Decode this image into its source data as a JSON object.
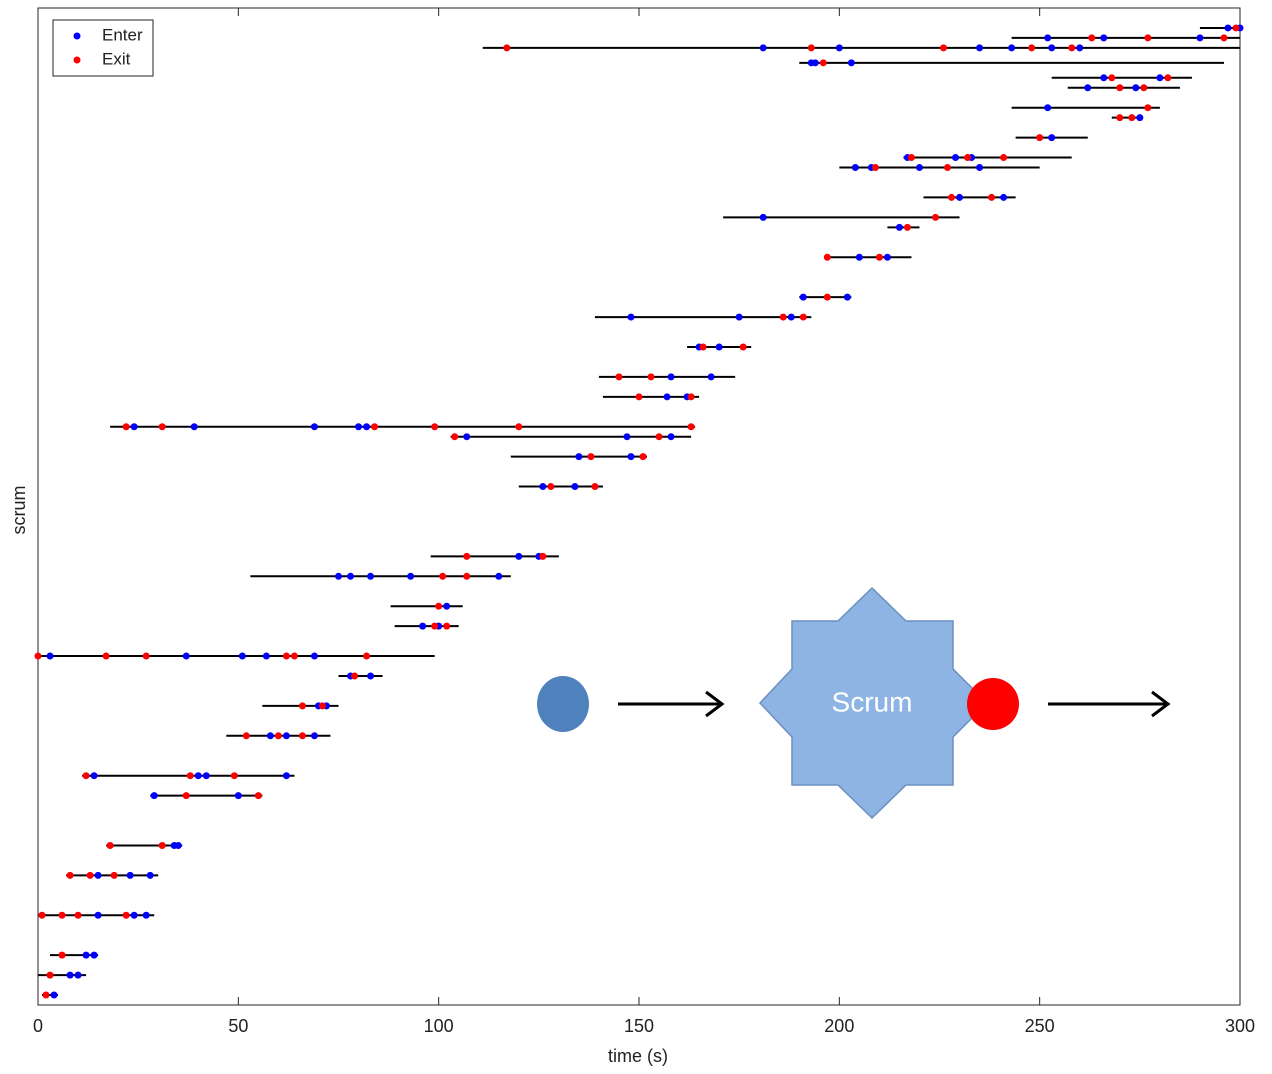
{
  "chart_data": {
    "type": "timeline",
    "x_label": "time (s)",
    "y_label": "scrum",
    "xlim": [
      0,
      300
    ],
    "xticks": [
      0,
      50,
      100,
      150,
      200,
      250,
      300
    ],
    "ylim": [
      0,
      100
    ],
    "legend": "upper left",
    "series": [
      {
        "name": "Enter",
        "color": "#0000ff"
      },
      {
        "name": "Exit",
        "color": "#ff0000"
      }
    ],
    "line_color": "#000000",
    "scrums": [
      {
        "y": 1,
        "start": 1,
        "end": 5,
        "enter": [
          4
        ],
        "exit": [
          2
        ]
      },
      {
        "y": 3,
        "start": 0,
        "end": 12,
        "enter": [
          8,
          10
        ],
        "exit": [
          3
        ]
      },
      {
        "y": 5,
        "start": 3,
        "end": 15,
        "enter": [
          12,
          14
        ],
        "exit": [
          6
        ]
      },
      {
        "y": 9,
        "start": 0,
        "end": 29,
        "enter": [
          15,
          24,
          27
        ],
        "exit": [
          1,
          6,
          10,
          22
        ]
      },
      {
        "y": 13,
        "start": 7,
        "end": 30,
        "enter": [
          15,
          23,
          28
        ],
        "exit": [
          8,
          13,
          19
        ]
      },
      {
        "y": 16,
        "start": 17,
        "end": 36,
        "enter": [
          34,
          35
        ],
        "exit": [
          18,
          31
        ]
      },
      {
        "y": 21,
        "start": 28,
        "end": 56,
        "enter": [
          29,
          50
        ],
        "exit": [
          37,
          55
        ]
      },
      {
        "y": 23,
        "start": 11,
        "end": 64,
        "enter": [
          14,
          40,
          42,
          62
        ],
        "exit": [
          12,
          38,
          49
        ]
      },
      {
        "y": 27,
        "start": 47,
        "end": 73,
        "enter": [
          58,
          62,
          69
        ],
        "exit": [
          52,
          60,
          66
        ]
      },
      {
        "y": 30,
        "start": 56,
        "end": 75,
        "enter": [
          70,
          72
        ],
        "exit": [
          66,
          71
        ]
      },
      {
        "y": 33,
        "start": 75,
        "end": 86,
        "enter": [
          78,
          83
        ],
        "exit": [
          79
        ]
      },
      {
        "y": 35,
        "start": 0,
        "end": 99,
        "enter": [
          3,
          37,
          51,
          57,
          69
        ],
        "exit": [
          0,
          17,
          27,
          62,
          64,
          82
        ]
      },
      {
        "y": 38,
        "start": 89,
        "end": 105,
        "enter": [
          96,
          100
        ],
        "exit": [
          99,
          102
        ]
      },
      {
        "y": 40,
        "start": 88,
        "end": 106,
        "enter": [
          102
        ],
        "exit": [
          100
        ]
      },
      {
        "y": 43,
        "start": 53,
        "end": 118,
        "enter": [
          75,
          78,
          83,
          93,
          115
        ],
        "exit": [
          101,
          107
        ]
      },
      {
        "y": 45,
        "start": 98,
        "end": 130,
        "enter": [
          120,
          125
        ],
        "exit": [
          107,
          126
        ]
      },
      {
        "y": 52,
        "start": 120,
        "end": 141,
        "enter": [
          126,
          134
        ],
        "exit": [
          128,
          139
        ]
      },
      {
        "y": 55,
        "start": 118,
        "end": 152,
        "enter": [
          135,
          148
        ],
        "exit": [
          138,
          151
        ]
      },
      {
        "y": 57,
        "start": 103,
        "end": 163,
        "enter": [
          107,
          147,
          158
        ],
        "exit": [
          104,
          155
        ]
      },
      {
        "y": 58,
        "start": 18,
        "end": 164,
        "enter": [
          24,
          39,
          69,
          80,
          82
        ],
        "exit": [
          22,
          31,
          84,
          99,
          120,
          163
        ]
      },
      {
        "y": 61,
        "start": 141,
        "end": 165,
        "enter": [
          157,
          162
        ],
        "exit": [
          150,
          163
        ]
      },
      {
        "y": 63,
        "start": 140,
        "end": 174,
        "enter": [
          158,
          168
        ],
        "exit": [
          145,
          153
        ]
      },
      {
        "y": 66,
        "start": 162,
        "end": 178,
        "enter": [
          165,
          170
        ],
        "exit": [
          166,
          176
        ]
      },
      {
        "y": 69,
        "start": 139,
        "end": 193,
        "enter": [
          148,
          175,
          188
        ],
        "exit": [
          186,
          191
        ]
      },
      {
        "y": 71,
        "start": 190,
        "end": 203,
        "enter": [
          191,
          202
        ],
        "exit": [
          197
        ]
      },
      {
        "y": 75,
        "start": 197,
        "end": 218,
        "enter": [
          205,
          212
        ],
        "exit": [
          197,
          210
        ]
      },
      {
        "y": 78,
        "start": 212,
        "end": 220,
        "enter": [
          215
        ],
        "exit": [
          217
        ]
      },
      {
        "y": 79,
        "start": 171,
        "end": 230,
        "enter": [
          181
        ],
        "exit": [
          224
        ]
      },
      {
        "y": 81,
        "start": 221,
        "end": 244,
        "enter": [
          230,
          241
        ],
        "exit": [
          228,
          238
        ]
      },
      {
        "y": 84,
        "start": 200,
        "end": 250,
        "enter": [
          204,
          208,
          220,
          235
        ],
        "exit": [
          209,
          227
        ]
      },
      {
        "y": 85,
        "start": 216,
        "end": 258,
        "enter": [
          217,
          229,
          233
        ],
        "exit": [
          218,
          232,
          241
        ]
      },
      {
        "y": 87,
        "start": 244,
        "end": 262,
        "enter": [
          253
        ],
        "exit": [
          250
        ]
      },
      {
        "y": 89,
        "start": 268,
        "end": 275,
        "enter": [
          275
        ],
        "exit": [
          270,
          273
        ]
      },
      {
        "y": 90,
        "start": 243,
        "end": 280,
        "enter": [
          252
        ],
        "exit": [
          277
        ]
      },
      {
        "y": 92,
        "start": 257,
        "end": 285,
        "enter": [
          262,
          274
        ],
        "exit": [
          270,
          276
        ]
      },
      {
        "y": 93,
        "start": 253,
        "end": 288,
        "enter": [
          266,
          280
        ],
        "exit": [
          268,
          282
        ]
      },
      {
        "y": 94.5,
        "start": 190,
        "end": 296,
        "enter": [
          193,
          194,
          203
        ],
        "exit": [
          196
        ]
      },
      {
        "y": 96,
        "start": 111,
        "end": 300,
        "enter": [
          181,
          200,
          235,
          243,
          253,
          260
        ],
        "exit": [
          117,
          193,
          226,
          248,
          258
        ]
      },
      {
        "y": 97,
        "start": 243,
        "end": 300,
        "enter": [
          252,
          266,
          290
        ],
        "exit": [
          263,
          277,
          296
        ]
      },
      {
        "y": 98,
        "start": 290,
        "end": 300,
        "enter": [
          297,
          300
        ],
        "exit": [
          299
        ]
      }
    ],
    "diagram": {
      "label": "Scrum"
    }
  }
}
